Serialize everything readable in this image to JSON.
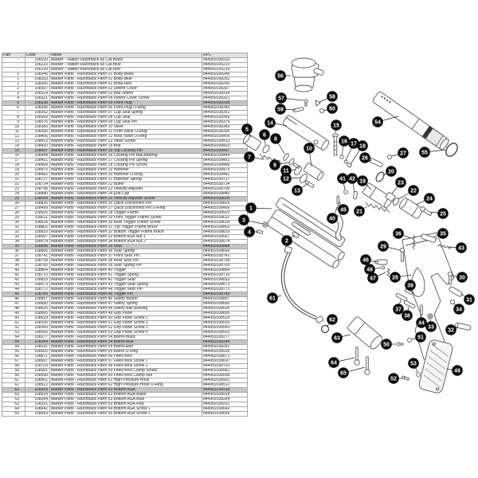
{
  "colors": {
    "background": "#ffffff",
    "highlight_row": "#c4c4c4",
    "header_bg": "#e2e2e2",
    "grid": "#a8a8a8",
    "text": "#1a1a1a",
    "line_art": "#555555",
    "callout_fill": "#0d0d0d",
    "callout_text": "#ffffff",
    "leader_line": "#222222"
  },
  "table": {
    "headers": [
      "Part",
      "Code",
      "Name",
      "UPC"
    ],
    "row_format": [
      "part",
      "code",
      "name",
      "upc",
      "highlighted"
    ],
    "rows": [
      [
        "-",
        "106020",
        "Marker - Valken Razorback 68 Cal-Black",
        "844959106020",
        0
      ],
      [
        "-",
        "106223",
        "Marker - Valken Razorback 68 Cal-Blue",
        "844959106223",
        0
      ],
      [
        "-",
        "106239",
        "Marker - Valken Razorback 68 Cal-Red",
        "844959106239",
        0
      ],
      [
        "1",
        "108246",
        "Marker Parts - Razorback Part# 01 Body-Black",
        "844959108246",
        0
      ],
      [
        "1",
        "108253",
        "Marker Parts - Razorback Part# 01 Body-Blue",
        "844959108253",
        0
      ],
      [
        "1",
        "108260",
        "Marker Parts - Razorback Part# 01 Body-Red",
        "844959108260",
        0
      ],
      [
        "2",
        "108307",
        "Marker Parts - Razorback Part# 02 Detent Cover",
        "844959108307",
        0
      ],
      [
        "3",
        "108314",
        "Marker Parts - Razorback Part# 03 Ball Detent",
        "844959108314",
        0
      ],
      [
        "4",
        "108321",
        "Marker Parts - Razorback Part# 04 Detent Cover Screw",
        "844959108321",
        0
      ],
      [
        "5",
        "108338",
        "Marker Parts - Razorback Part# 05 Front Plug",
        "844959108338",
        1
      ],
      [
        "6",
        "108345",
        "Marker Parts - Razorback Part# 06 Front Plug O-Ring",
        "844959108345",
        0
      ],
      [
        "7",
        "108352",
        "Marker Parts - Razorback Part# 07 Cup Seal Spring",
        "844959108352",
        0
      ],
      [
        "8",
        "108369",
        "Marker Parts - Razorback Part# 08 Cup Seal",
        "844959108369",
        0
      ],
      [
        "9",
        "108376",
        "Marker Parts - Razorback Part# 09 Cup Seal Pin",
        "844959108376",
        0
      ],
      [
        "10",
        "108383",
        "Marker Parts - Razorback Part# 10 Valve",
        "844959108383",
        0
      ],
      [
        "11",
        "108390",
        "Marker Parts - Razorback Part# 11 Front Valve O-Ring",
        "844959108390",
        0
      ],
      [
        "12",
        "108406",
        "Marker Parts - Razorback Part# 12 Rear Valve O-Ring",
        "844959108406",
        0
      ],
      [
        "13",
        "108413",
        "Marker Parts - Razorback Part# 13 Valve Screw",
        "844959108413",
        0
      ],
      [
        "14",
        "108420",
        "Marker Parts - Razorback Part# 14 Bolt",
        "844959108420",
        0
      ],
      [
        "15",
        "108437",
        "Marker Parts - Razorback Part# 15 Top Cocking Pin",
        "844959108437",
        1
      ],
      [
        "16",
        "108444",
        "Marker Parts - Razorback Part# 16 Cocking Pin Ball Bearing",
        "844959108444",
        0
      ],
      [
        "17",
        "108451",
        "Marker Parts - Razorback Part# 17 Cocking Pin Spring",
        "844959108451",
        0
      ],
      [
        "18",
        "108468",
        "Marker Parts - Razorback Part# 18 Cocking Pin Screw",
        "844959108468",
        0
      ],
      [
        "19",
        "108475",
        "Marker Parts - Razorback Part# 19 Hammer",
        "844959108475",
        0
      ],
      [
        "20",
        "108482",
        "Marker Parts - Razorback Part# 20 Hammer O-Ring",
        "844959108482",
        0
      ],
      [
        "21",
        "108727",
        "Marker Parts - Razorback Part# 21 Hammer Spring",
        "844959108727",
        0
      ],
      [
        "22",
        "108734",
        "Marker Parts - Razorback Part# 22 Buffer",
        "844959108734",
        0
      ],
      [
        "23",
        "108796",
        "Marker Parts - Razorback Part# 23 Velocity Adjuster",
        "844959108796",
        0
      ],
      [
        "24",
        "108840",
        "Marker Parts - Razorback Part# 24 End Cap",
        "844959108840",
        0
      ],
      [
        "25",
        "108604",
        "Marker Parts - Razorback Part# 25 Velocity Adjuster Screw",
        "844959108604",
        1
      ],
      [
        "26",
        "108826",
        "Marker Parts - Razorback Part# 26 Quick Disconnect Pin",
        "844959108826",
        0
      ],
      [
        "27",
        "108499",
        "Marker Parts - Razorback Part# 27 Quick Disconnect Pin O-Ring",
        "844959108499",
        0
      ],
      [
        "28",
        "108925",
        "Marker Parts - Razorback Part# 28 Trigger Frame",
        "844959108925",
        0
      ],
      [
        "29",
        "108611",
        "Marker Parts - Razorback Part# 29 Front Trigger Frame Screw",
        "844959108611",
        0
      ],
      [
        "30",
        "108628",
        "Marker Parts - Razorback Part# 30 Rear Trigger Frame Screw",
        "844959108628",
        0
      ],
      [
        "31",
        "108802",
        "Marker Parts - Razorback Part# 31 Top Trigger Frame Brace",
        "844959108802",
        0
      ],
      [
        "32",
        "108819",
        "Marker Parts - Razorback Part# 32 Bottom Trigger Frame Brace",
        "844959108819",
        0
      ],
      [
        "33",
        "108567",
        "Marker Parts - Razorback Part# 33 Bottom ASA Nut 1",
        "844959108567",
        0
      ],
      [
        "34",
        "108574",
        "Marker Parts - Razorback Part# 34 Bottom ASA Nut 2",
        "844959108574",
        0
      ],
      [
        "35",
        "108888",
        "Marker Parts - Razorback Part# 35 Sear",
        "844959108888",
        1
      ],
      [
        "36",
        "108666",
        "Marker Parts - Razorback Part# 36 Sear Spring",
        "844959108666",
        0
      ],
      [
        "37",
        "108741",
        "Marker Parts - Razorback Part# 37 Front Sear Pin",
        "844959108741",
        0
      ],
      [
        "38",
        "108758",
        "Marker Parts - Razorback Part# 38 Rear Sear Pin",
        "844959108758",
        0
      ],
      [
        "39",
        "108765",
        "Marker Parts - Razorback Part# 39 Sear Spring Pin",
        "844959108765",
        0
      ],
      [
        "40",
        "108864",
        "Marker Parts - Razorback Part# 40 Trigger",
        "844959108864",
        0
      ],
      [
        "41",
        "108710",
        "Marker Parts - Razorback Part# 41 Trigger Spring",
        "844959108710",
        0
      ],
      [
        "42",
        "108833",
        "Marker Parts - Razorback Part# 42 Trigger Sear",
        "844959108833",
        0
      ],
      [
        "43",
        "108673",
        "Marker Parts - Razorback Part# 43 Trigger Sear Spring",
        "844959108673",
        0
      ],
      [
        "44",
        "108772",
        "Marker Parts - Razorback Part# 44 Trigger Sear Pin",
        "844959108772",
        0
      ],
      [
        "45",
        "108789",
        "Marker Parts - Razorback Part# 45 Trigger Pin",
        "844959108789",
        1
      ],
      [
        "46",
        "108857",
        "Marker Parts - Razorback Part# 46 Safety Button",
        "844959108857",
        0
      ],
      [
        "47",
        "108680",
        "Marker Parts - Razorback Part# 47 Safety Spring",
        "844959108680",
        0
      ],
      [
        "48",
        "108635",
        "Marker Parts - Razorback Part# 48 Safety Ball Bearing",
        "844959108635",
        0
      ],
      [
        "49",
        "108895",
        "Marker Parts - Razorback Part# 49 Grip Panel",
        "844959108895",
        0
      ],
      [
        "50",
        "108529",
        "Marker Parts - Razorback Part# 50 Grip Panel Screw 1",
        "844959108529",
        0
      ],
      [
        "51",
        "108536",
        "Marker Parts - Razorback Part# 51 Grip Panel Screw 2",
        "844959108536",
        0
      ],
      [
        "52",
        "108543",
        "Marker Parts - Razorback Part# 52 Grip Panel Screw 3",
        "844959108543",
        0
      ],
      [
        "53",
        "108550",
        "Marker Parts - Razorback Part# 53 Grip Panel Screw 4",
        "844959108550",
        0
      ],
      [
        "54",
        "108277",
        "Marker Parts - Razorback Part# 54 Barrel-Black",
        "844959108277",
        0
      ],
      [
        "54",
        "108284",
        "Marker Parts - Razorback Part# 54 Barrel-Blue",
        "844959108284",
        1
      ],
      [
        "54",
        "108291",
        "Marker Parts - Razorback Part# 54 Barrel-Red",
        "844959108291",
        0
      ],
      [
        "55",
        "108505",
        "Marker Parts - Razorback Part# 55 Barrel O-Ring",
        "844959108505",
        0
      ],
      [
        "56",
        "108871",
        "Marker Parts - Razorback Part# 56 Feed neck",
        "844959108871",
        0
      ],
      [
        "57",
        "108697",
        "Marker Parts - Razorback Part# 57 Feed neck Screw 1",
        "844959108697",
        0
      ],
      [
        "58",
        "108703",
        "Marker Parts - Razorback Part# 58 Feed neck Screw 2",
        "844959108703",
        0
      ],
      [
        "59",
        "108581",
        "Marker Parts - Razorback Part# 59 Feed neck Clamp Screw",
        "844959108581",
        0
      ],
      [
        "60",
        "108598",
        "Marker Parts - Razorback Part# 60 Feed neck Clamp Nut",
        "844959108598",
        0
      ],
      [
        "61",
        "108901",
        "Marker Parts - Razorback Part# 61 High Pressure Hose",
        "844959108901",
        0
      ],
      [
        "62",
        "108512",
        "Marker Parts - Razorback Part# 62 High Pressure Hose O-Ring",
        "844959108512",
        0
      ],
      [
        "63",
        "108918",
        "Marker Parts - Razorback Part# 63 Bottom ASA",
        "844959108918",
        1
      ],
      [
        "63",
        "108918",
        "Marker Parts - Razorback Part# 63 Bottom ASA-Black",
        "844959108918",
        0
      ],
      [
        "63",
        "108284",
        "Marker Parts - Razorback Part# 63 Bottom ASA-Blue",
        "844959108284",
        0
      ],
      [
        "63",
        "108291",
        "Marker Parts - Razorback Part# 63 Bottom ASA-Red",
        "844959108291",
        0
      ],
      [
        "64",
        "108642",
        "Marker Parts - Razorback Part# 64 Bottom ASA Screw 1",
        "844959108642",
        0
      ],
      [
        "65",
        "108659",
        "Marker Parts - Razorback Part# 65 Bottom ASA Screw 2",
        "844959108659",
        0
      ]
    ]
  },
  "diagram": {
    "callout_format": [
      "number",
      "x",
      "y",
      "leader_x",
      "leader_y"
    ],
    "callouts": [
      [
        "1",
        315,
        261,
        341,
        262
      ],
      [
        "2",
        360,
        302,
        370,
        295
      ],
      [
        "3",
        306,
        276,
        330,
        281
      ],
      [
        "4",
        313,
        291,
        324,
        291
      ],
      [
        "5",
        310,
        162,
        315,
        172
      ],
      [
        "6",
        332,
        169,
        333,
        182
      ],
      [
        "7",
        313,
        197,
        332,
        200
      ],
      [
        "8",
        346,
        174,
        357,
        193
      ],
      [
        "9",
        345,
        207,
        363,
        204
      ],
      [
        "10",
        388,
        186,
        391,
        209
      ],
      [
        "11",
        359,
        214,
        371,
        213
      ],
      [
        "12",
        359,
        224,
        378,
        223
      ],
      [
        "13",
        373,
        239,
        386,
        231
      ],
      [
        "14",
        339,
        154,
        360,
        158
      ],
      [
        "15",
        422,
        157,
        421,
        167
      ],
      [
        "16",
        432,
        177,
        429,
        195
      ],
      [
        "17",
        444,
        180,
        434,
        201
      ],
      [
        "18",
        455,
        183,
        440,
        206
      ],
      [
        "19",
        455,
        227,
        466,
        238
      ],
      [
        "20",
        491,
        215,
        481,
        220
      ],
      [
        "21",
        451,
        265,
        461,
        259
      ],
      [
        "22",
        519,
        239,
        500,
        250
      ],
      [
        "23",
        503,
        229,
        492,
        243
      ],
      [
        "24",
        539,
        249,
        522,
        257
      ],
      [
        "25",
        556,
        268,
        541,
        266
      ],
      [
        "26",
        458,
        198,
        466,
        202
      ],
      [
        "27",
        506,
        192,
        492,
        196
      ],
      [
        "28",
        496,
        348,
        516,
        345
      ],
      [
        "29",
        481,
        309,
        502,
        314
      ],
      [
        "30",
        580,
        348,
        567,
        346
      ],
      [
        "31",
        589,
        376,
        579,
        369
      ],
      [
        "32",
        566,
        414,
        575,
        411
      ],
      [
        "33",
        541,
        410,
        540,
        401
      ],
      [
        "34",
        576,
        388,
        570,
        381
      ],
      [
        "35",
        556,
        293,
        545,
        297
      ],
      [
        "36",
        500,
        293,
        516,
        299
      ],
      [
        "37",
        500,
        388,
        503,
        376
      ],
      [
        "38",
        511,
        396,
        513,
        385
      ],
      [
        "39",
        515,
        358,
        513,
        365
      ],
      [
        "40",
        417,
        274,
        422,
        270
      ],
      [
        "41",
        430,
        224,
        433,
        238
      ],
      [
        "42",
        442,
        224,
        445,
        241
      ],
      [
        "43",
        579,
        311,
        563,
        310
      ],
      [
        "44",
        529,
        405,
        528,
        394
      ],
      [
        "45",
        431,
        263,
        426,
        253
      ],
      [
        "46",
        459,
        326,
        473,
        329
      ],
      [
        "47",
        468,
        349,
        484,
        342
      ],
      [
        "48",
        464,
        338,
        478,
        336
      ],
      [
        "49",
        574,
        465,
        561,
        463
      ],
      [
        "50",
        485,
        432,
        497,
        432
      ],
      [
        "51",
        528,
        423,
        517,
        426
      ],
      [
        "52",
        494,
        475,
        505,
        475
      ],
      [
        "53",
        519,
        456,
        524,
        467
      ],
      [
        "54",
        474,
        153,
        500,
        146
      ],
      [
        "55",
        533,
        191,
        560,
        188
      ],
      [
        "56",
        352,
        95,
        365,
        95
      ],
      [
        "57",
        353,
        123,
        381,
        126
      ],
      [
        "58",
        417,
        121,
        401,
        128
      ],
      [
        "59",
        352,
        137,
        371,
        138
      ],
      [
        "60",
        417,
        136,
        406,
        139
      ],
      [
        "61",
        342,
        374,
        353,
        371
      ],
      [
        "62",
        417,
        401,
        410,
        410
      ],
      [
        "63",
        423,
        424,
        440,
        420
      ],
      [
        "64",
        419,
        455,
        445,
        449
      ],
      [
        "65",
        431,
        468,
        458,
        461
      ]
    ]
  }
}
